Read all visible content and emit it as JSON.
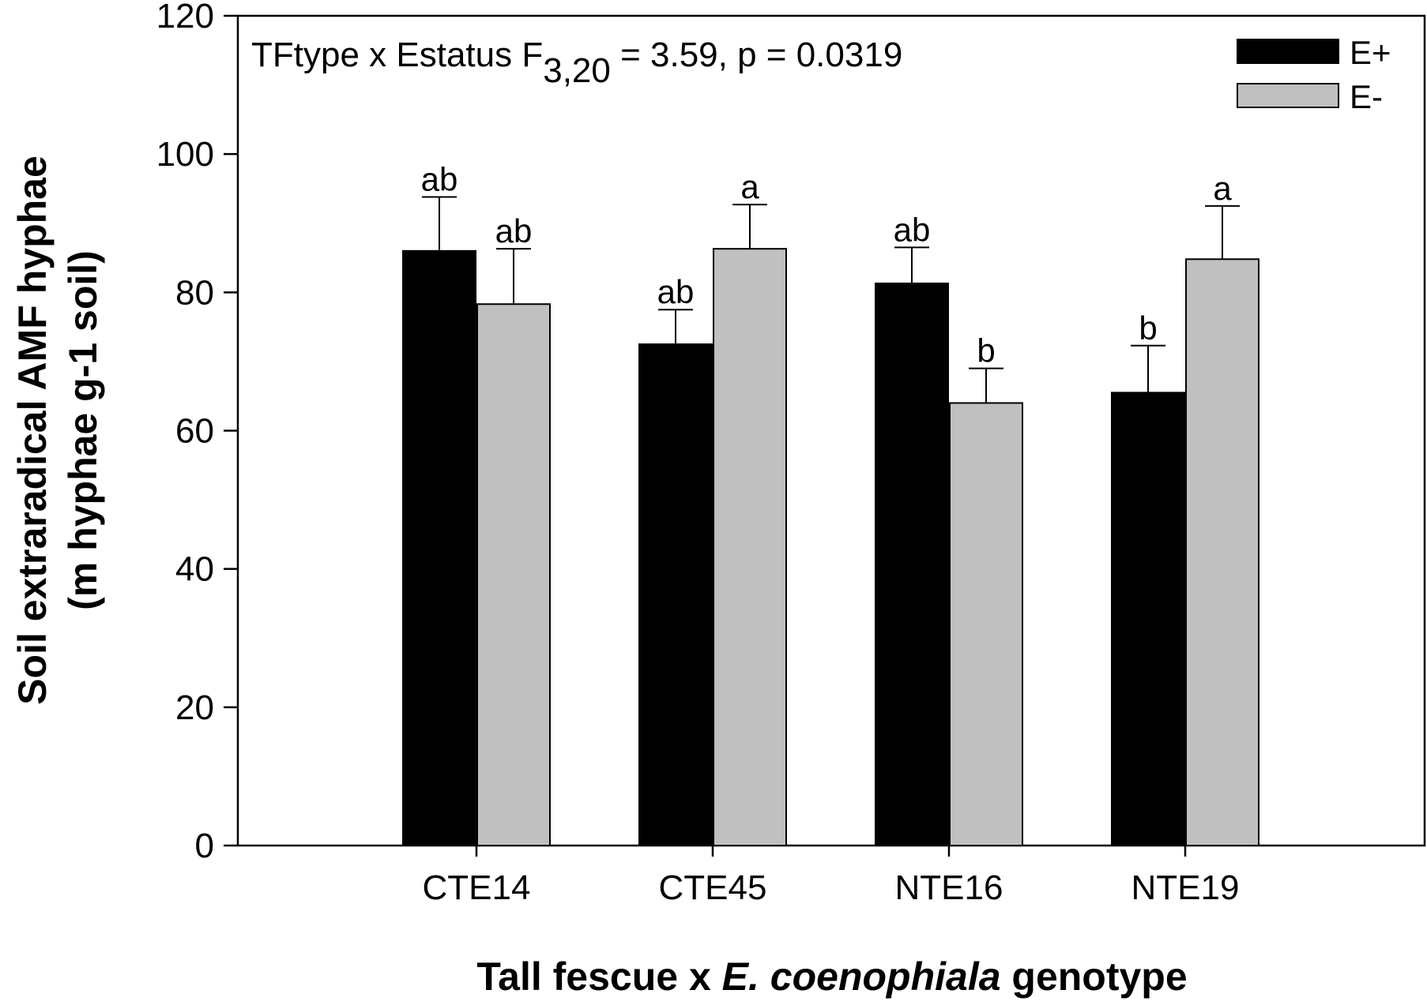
{
  "chart_data": {
    "type": "bar",
    "title": "",
    "annotation": {
      "prefix": "TFtype x Estatus F",
      "subscript": "3,20",
      "suffix": " = 3.59, p = 0.0319"
    },
    "xlabel": {
      "part1": "Tall fescue x ",
      "italic": "E. coenophiala",
      "part2": " genotype"
    },
    "ylabel": {
      "line1": "Soil extraradical AMF hyphae",
      "line2": "(m hyphae g-1 soil)"
    },
    "ylim": [
      0,
      120
    ],
    "yticks": [
      0,
      20,
      40,
      60,
      80,
      100,
      120
    ],
    "categories": [
      "CTE14",
      "CTE45",
      "NTE16",
      "NTE19"
    ],
    "series": [
      {
        "name": "E+",
        "color": "#000000",
        "values": [
          86,
          72.5,
          81.3,
          65.5
        ],
        "errors": [
          7.8,
          5.0,
          5.2,
          6.8
        ],
        "labels": [
          "ab",
          "ab",
          "ab",
          "b"
        ]
      },
      {
        "name": "E-",
        "color": "#c0c0c0",
        "values": [
          78.3,
          86.3,
          64,
          84.8
        ],
        "errors": [
          8.0,
          6.4,
          5.0,
          7.7
        ],
        "labels": [
          "ab",
          "a",
          "b",
          "a"
        ]
      }
    ],
    "legend_position": "top-right"
  }
}
